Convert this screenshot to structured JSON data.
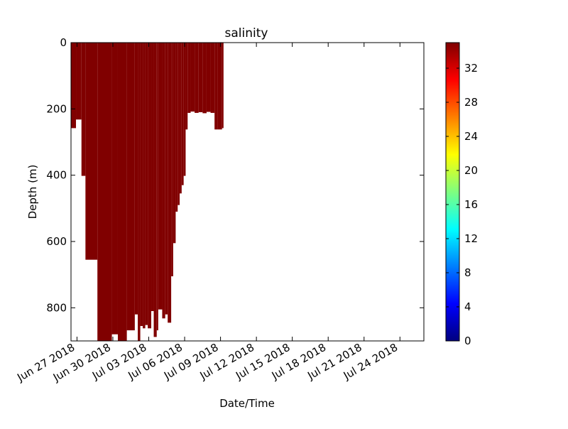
{
  "chart_data": {
    "type": "scatter",
    "title": "salinity",
    "xlabel": "Date/Time",
    "ylabel": "Depth (m)",
    "xlim": [
      "2018-06-26T12:00",
      "2018-07-26T00:00"
    ],
    "ylim": [
      900,
      0
    ],
    "y_inverted": true,
    "x_ticks": [
      "2018-06-27",
      "2018-06-30",
      "2018-07-03",
      "2018-07-06",
      "2018-07-09",
      "2018-07-12",
      "2018-07-15",
      "2018-07-18",
      "2018-07-21",
      "2018-07-24"
    ],
    "x_tick_labels": [
      "Jun 27 2018",
      "Jun 30 2018",
      "Jul 03 2018",
      "Jul 06 2018",
      "Jul 09 2018",
      "Jul 12 2018",
      "Jul 15 2018",
      "Jul 18 2018",
      "Jul 21 2018",
      "Jul 24 2018"
    ],
    "y_ticks": [
      0,
      200,
      400,
      600,
      800
    ],
    "y_tick_labels": [
      "0",
      "200",
      "400",
      "600",
      "800"
    ],
    "marker_color": "#800000",
    "profiles": [
      {
        "start": "2018-06-26T12:00",
        "end": "2018-06-26T22:00",
        "max_depth": 258
      },
      {
        "start": "2018-06-26T22:00",
        "end": "2018-06-27T09:00",
        "max_depth": 232
      },
      {
        "start": "2018-06-27T09:00",
        "end": "2018-06-27T17:00",
        "max_depth": 402
      },
      {
        "start": "2018-06-27T17:00",
        "end": "2018-06-28T17:00",
        "max_depth": 655
      },
      {
        "start": "2018-06-28T17:00",
        "end": "2018-06-29T22:00",
        "max_depth": 900
      },
      {
        "start": "2018-06-29T22:00",
        "end": "2018-06-30T10:00",
        "max_depth": 880
      },
      {
        "start": "2018-06-30T10:00",
        "end": "2018-07-01T04:00",
        "max_depth": 900
      },
      {
        "start": "2018-07-01T04:00",
        "end": "2018-07-01T20:00",
        "max_depth": 868
      },
      {
        "start": "2018-07-01T20:00",
        "end": "2018-07-02T02:00",
        "max_depth": 820
      },
      {
        "start": "2018-07-02T02:00",
        "end": "2018-07-02T07:00",
        "max_depth": 900
      },
      {
        "start": "2018-07-02T07:00",
        "end": "2018-07-02T12:00",
        "max_depth": 855
      },
      {
        "start": "2018-07-02T12:00",
        "end": "2018-07-02T17:00",
        "max_depth": 862
      },
      {
        "start": "2018-07-02T17:00",
        "end": "2018-07-02T22:00",
        "max_depth": 852
      },
      {
        "start": "2018-07-02T22:00",
        "end": "2018-07-03T05:00",
        "max_depth": 862
      },
      {
        "start": "2018-07-03T05:00",
        "end": "2018-07-03T10:00",
        "max_depth": 810
      },
      {
        "start": "2018-07-03T10:00",
        "end": "2018-07-03T16:00",
        "max_depth": 888
      },
      {
        "start": "2018-07-03T16:00",
        "end": "2018-07-03T19:00",
        "max_depth": 868
      },
      {
        "start": "2018-07-03T19:00",
        "end": "2018-07-04T03:00",
        "max_depth": 805
      },
      {
        "start": "2018-07-04T03:00",
        "end": "2018-07-04T09:00",
        "max_depth": 832
      },
      {
        "start": "2018-07-04T09:00",
        "end": "2018-07-04T14:00",
        "max_depth": 820
      },
      {
        "start": "2018-07-04T14:00",
        "end": "2018-07-04T21:00",
        "max_depth": 845
      },
      {
        "start": "2018-07-04T21:00",
        "end": "2018-07-05T01:00",
        "max_depth": 705
      },
      {
        "start": "2018-07-05T01:00",
        "end": "2018-07-05T06:00",
        "max_depth": 605
      },
      {
        "start": "2018-07-05T06:00",
        "end": "2018-07-05T10:00",
        "max_depth": 510
      },
      {
        "start": "2018-07-05T10:00",
        "end": "2018-07-05T14:00",
        "max_depth": 490
      },
      {
        "start": "2018-07-05T14:00",
        "end": "2018-07-05T18:00",
        "max_depth": 455
      },
      {
        "start": "2018-07-05T18:00",
        "end": "2018-07-05T22:00",
        "max_depth": 430
      },
      {
        "start": "2018-07-05T22:00",
        "end": "2018-07-06T02:00",
        "max_depth": 402
      },
      {
        "start": "2018-07-06T02:00",
        "end": "2018-07-06T06:00",
        "max_depth": 262
      },
      {
        "start": "2018-07-06T06:00",
        "end": "2018-07-06T12:00",
        "max_depth": 212
      },
      {
        "start": "2018-07-06T12:00",
        "end": "2018-07-06T20:00",
        "max_depth": 208
      },
      {
        "start": "2018-07-06T20:00",
        "end": "2018-07-07T04:00",
        "max_depth": 212
      },
      {
        "start": "2018-07-07T04:00",
        "end": "2018-07-07T12:00",
        "max_depth": 210
      },
      {
        "start": "2018-07-07T12:00",
        "end": "2018-07-07T20:00",
        "max_depth": 213
      },
      {
        "start": "2018-07-07T20:00",
        "end": "2018-07-08T04:00",
        "max_depth": 209
      },
      {
        "start": "2018-07-08T04:00",
        "end": "2018-07-08T12:00",
        "max_depth": 212
      },
      {
        "start": "2018-07-08T12:00",
        "end": "2018-07-08T18:00",
        "max_depth": 262
      },
      {
        "start": "2018-07-08T18:00",
        "end": "2018-07-09T03:00",
        "max_depth": 262
      },
      {
        "start": "2018-07-09T03:00",
        "end": "2018-07-09T06:00",
        "max_depth": 258
      }
    ],
    "colorbar": {
      "colormap": "jet",
      "range": [
        0,
        35
      ],
      "ticks": [
        0,
        4,
        8,
        12,
        16,
        20,
        24,
        28,
        32
      ],
      "tick_labels": [
        "0",
        "4",
        "8",
        "12",
        "16",
        "20",
        "24",
        "28",
        "32"
      ],
      "colors": [
        "#00007f",
        "#0000ff",
        "#007fff",
        "#00ffff",
        "#7fff7f",
        "#ffff00",
        "#ff7f00",
        "#ff0000",
        "#7f0000"
      ]
    }
  }
}
